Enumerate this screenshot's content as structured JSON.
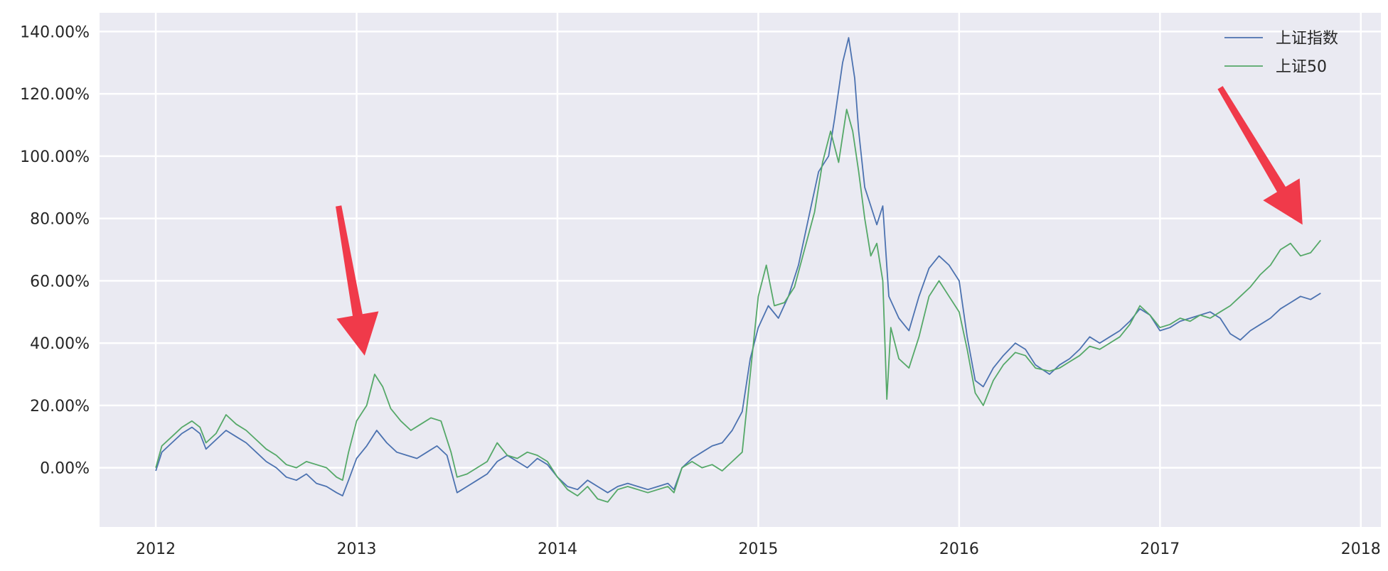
{
  "chart_data": {
    "type": "line",
    "title": "",
    "xlabel": "",
    "ylabel": "",
    "xlim": [
      2011.72,
      2018.1
    ],
    "ylim": [
      -19,
      146
    ],
    "x_ticks": [
      2012,
      2013,
      2014,
      2015,
      2016,
      2017,
      2018
    ],
    "x_tick_labels": [
      "2012",
      "2013",
      "2014",
      "2015",
      "2016",
      "2017",
      "2018"
    ],
    "y_ticks": [
      0,
      20,
      40,
      60,
      80,
      100,
      120,
      140
    ],
    "y_tick_labels": [
      "0.00%",
      "20.00%",
      "40.00%",
      "60.00%",
      "80.00%",
      "100.00%",
      "120.00%",
      "140.00%"
    ],
    "grid": true,
    "legend_position": "top-right",
    "series": [
      {
        "name": "上证指数",
        "color": "#4C72B0",
        "points": [
          [
            2012.0,
            -1
          ],
          [
            2012.03,
            5
          ],
          [
            2012.08,
            8
          ],
          [
            2012.13,
            11
          ],
          [
            2012.18,
            13
          ],
          [
            2012.22,
            11
          ],
          [
            2012.25,
            6
          ],
          [
            2012.3,
            9
          ],
          [
            2012.35,
            12
          ],
          [
            2012.4,
            10
          ],
          [
            2012.45,
            8
          ],
          [
            2012.5,
            5
          ],
          [
            2012.55,
            2
          ],
          [
            2012.6,
            0
          ],
          [
            2012.65,
            -3
          ],
          [
            2012.7,
            -4
          ],
          [
            2012.75,
            -2
          ],
          [
            2012.8,
            -5
          ],
          [
            2012.85,
            -6
          ],
          [
            2012.9,
            -8
          ],
          [
            2012.93,
            -9
          ],
          [
            2012.96,
            -4
          ],
          [
            2013.0,
            3
          ],
          [
            2013.05,
            7
          ],
          [
            2013.1,
            12
          ],
          [
            2013.15,
            8
          ],
          [
            2013.2,
            5
          ],
          [
            2013.25,
            4
          ],
          [
            2013.3,
            3
          ],
          [
            2013.35,
            5
          ],
          [
            2013.4,
            7
          ],
          [
            2013.45,
            4
          ],
          [
            2013.5,
            -8
          ],
          [
            2013.55,
            -6
          ],
          [
            2013.6,
            -4
          ],
          [
            2013.65,
            -2
          ],
          [
            2013.7,
            2
          ],
          [
            2013.75,
            4
          ],
          [
            2013.8,
            2
          ],
          [
            2013.85,
            0
          ],
          [
            2013.9,
            3
          ],
          [
            2013.95,
            1
          ],
          [
            2014.0,
            -3
          ],
          [
            2014.05,
            -6
          ],
          [
            2014.1,
            -7
          ],
          [
            2014.15,
            -4
          ],
          [
            2014.2,
            -6
          ],
          [
            2014.25,
            -8
          ],
          [
            2014.3,
            -6
          ],
          [
            2014.35,
            -5
          ],
          [
            2014.4,
            -6
          ],
          [
            2014.45,
            -7
          ],
          [
            2014.5,
            -6
          ],
          [
            2014.55,
            -5
          ],
          [
            2014.58,
            -7
          ],
          [
            2014.62,
            0
          ],
          [
            2014.67,
            3
          ],
          [
            2014.72,
            5
          ],
          [
            2014.77,
            7
          ],
          [
            2014.82,
            8
          ],
          [
            2014.87,
            12
          ],
          [
            2014.92,
            18
          ],
          [
            2014.96,
            35
          ],
          [
            2015.0,
            45
          ],
          [
            2015.05,
            52
          ],
          [
            2015.1,
            48
          ],
          [
            2015.15,
            55
          ],
          [
            2015.2,
            65
          ],
          [
            2015.25,
            80
          ],
          [
            2015.3,
            95
          ],
          [
            2015.35,
            100
          ],
          [
            2015.38,
            112
          ],
          [
            2015.42,
            130
          ],
          [
            2015.45,
            138
          ],
          [
            2015.48,
            125
          ],
          [
            2015.5,
            108
          ],
          [
            2015.53,
            90
          ],
          [
            2015.56,
            84
          ],
          [
            2015.59,
            78
          ],
          [
            2015.62,
            84
          ],
          [
            2015.65,
            55
          ],
          [
            2015.7,
            48
          ],
          [
            2015.75,
            44
          ],
          [
            2015.8,
            55
          ],
          [
            2015.85,
            64
          ],
          [
            2015.9,
            68
          ],
          [
            2015.95,
            65
          ],
          [
            2016.0,
            60
          ],
          [
            2016.04,
            42
          ],
          [
            2016.08,
            28
          ],
          [
            2016.12,
            26
          ],
          [
            2016.17,
            32
          ],
          [
            2016.22,
            36
          ],
          [
            2016.28,
            40
          ],
          [
            2016.33,
            38
          ],
          [
            2016.38,
            33
          ],
          [
            2016.45,
            30
          ],
          [
            2016.5,
            33
          ],
          [
            2016.55,
            35
          ],
          [
            2016.6,
            38
          ],
          [
            2016.65,
            42
          ],
          [
            2016.7,
            40
          ],
          [
            2016.75,
            42
          ],
          [
            2016.8,
            44
          ],
          [
            2016.85,
            47
          ],
          [
            2016.9,
            51
          ],
          [
            2016.95,
            49
          ],
          [
            2017.0,
            44
          ],
          [
            2017.05,
            45
          ],
          [
            2017.1,
            47
          ],
          [
            2017.15,
            48
          ],
          [
            2017.2,
            49
          ],
          [
            2017.25,
            50
          ],
          [
            2017.3,
            48
          ],
          [
            2017.35,
            43
          ],
          [
            2017.4,
            41
          ],
          [
            2017.45,
            44
          ],
          [
            2017.5,
            46
          ],
          [
            2017.55,
            48
          ],
          [
            2017.6,
            51
          ],
          [
            2017.65,
            53
          ],
          [
            2017.7,
            55
          ],
          [
            2017.75,
            54
          ],
          [
            2017.8,
            56
          ]
        ]
      },
      {
        "name": "上证50",
        "color": "#55A868",
        "points": [
          [
            2012.0,
            0
          ],
          [
            2012.03,
            7
          ],
          [
            2012.08,
            10
          ],
          [
            2012.13,
            13
          ],
          [
            2012.18,
            15
          ],
          [
            2012.22,
            13
          ],
          [
            2012.25,
            8
          ],
          [
            2012.3,
            11
          ],
          [
            2012.35,
            17
          ],
          [
            2012.4,
            14
          ],
          [
            2012.45,
            12
          ],
          [
            2012.5,
            9
          ],
          [
            2012.55,
            6
          ],
          [
            2012.6,
            4
          ],
          [
            2012.65,
            1
          ],
          [
            2012.7,
            0
          ],
          [
            2012.75,
            2
          ],
          [
            2012.8,
            1
          ],
          [
            2012.85,
            0
          ],
          [
            2012.9,
            -3
          ],
          [
            2012.93,
            -4
          ],
          [
            2012.96,
            5
          ],
          [
            2013.0,
            15
          ],
          [
            2013.05,
            20
          ],
          [
            2013.09,
            30
          ],
          [
            2013.13,
            26
          ],
          [
            2013.17,
            19
          ],
          [
            2013.22,
            15
          ],
          [
            2013.27,
            12
          ],
          [
            2013.32,
            14
          ],
          [
            2013.37,
            16
          ],
          [
            2013.42,
            15
          ],
          [
            2013.47,
            5
          ],
          [
            2013.5,
            -3
          ],
          [
            2013.55,
            -2
          ],
          [
            2013.6,
            0
          ],
          [
            2013.65,
            2
          ],
          [
            2013.7,
            8
          ],
          [
            2013.75,
            4
          ],
          [
            2013.8,
            3
          ],
          [
            2013.85,
            5
          ],
          [
            2013.9,
            4
          ],
          [
            2013.95,
            2
          ],
          [
            2014.0,
            -3
          ],
          [
            2014.05,
            -7
          ],
          [
            2014.1,
            -9
          ],
          [
            2014.15,
            -6
          ],
          [
            2014.2,
            -10
          ],
          [
            2014.25,
            -11
          ],
          [
            2014.3,
            -7
          ],
          [
            2014.35,
            -6
          ],
          [
            2014.4,
            -7
          ],
          [
            2014.45,
            -8
          ],
          [
            2014.5,
            -7
          ],
          [
            2014.55,
            -6
          ],
          [
            2014.58,
            -8
          ],
          [
            2014.62,
            0
          ],
          [
            2014.67,
            2
          ],
          [
            2014.72,
            0
          ],
          [
            2014.77,
            1
          ],
          [
            2014.82,
            -1
          ],
          [
            2014.87,
            2
          ],
          [
            2014.92,
            5
          ],
          [
            2014.96,
            30
          ],
          [
            2015.0,
            55
          ],
          [
            2015.04,
            65
          ],
          [
            2015.08,
            52
          ],
          [
            2015.13,
            53
          ],
          [
            2015.18,
            58
          ],
          [
            2015.23,
            70
          ],
          [
            2015.28,
            82
          ],
          [
            2015.32,
            98
          ],
          [
            2015.36,
            108
          ],
          [
            2015.4,
            98
          ],
          [
            2015.44,
            115
          ],
          [
            2015.47,
            108
          ],
          [
            2015.5,
            95
          ],
          [
            2015.53,
            80
          ],
          [
            2015.56,
            68
          ],
          [
            2015.59,
            72
          ],
          [
            2015.62,
            60
          ],
          [
            2015.64,
            22
          ],
          [
            2015.66,
            45
          ],
          [
            2015.7,
            35
          ],
          [
            2015.75,
            32
          ],
          [
            2015.8,
            42
          ],
          [
            2015.85,
            55
          ],
          [
            2015.9,
            60
          ],
          [
            2015.95,
            55
          ],
          [
            2016.0,
            50
          ],
          [
            2016.04,
            38
          ],
          [
            2016.08,
            24
          ],
          [
            2016.12,
            20
          ],
          [
            2016.17,
            28
          ],
          [
            2016.22,
            33
          ],
          [
            2016.28,
            37
          ],
          [
            2016.33,
            36
          ],
          [
            2016.38,
            32
          ],
          [
            2016.45,
            31
          ],
          [
            2016.5,
            32
          ],
          [
            2016.55,
            34
          ],
          [
            2016.6,
            36
          ],
          [
            2016.65,
            39
          ],
          [
            2016.7,
            38
          ],
          [
            2016.75,
            40
          ],
          [
            2016.8,
            42
          ],
          [
            2016.85,
            46
          ],
          [
            2016.9,
            52
          ],
          [
            2016.95,
            49
          ],
          [
            2017.0,
            45
          ],
          [
            2017.05,
            46
          ],
          [
            2017.1,
            48
          ],
          [
            2017.15,
            47
          ],
          [
            2017.2,
            49
          ],
          [
            2017.25,
            48
          ],
          [
            2017.3,
            50
          ],
          [
            2017.35,
            52
          ],
          [
            2017.4,
            55
          ],
          [
            2017.45,
            58
          ],
          [
            2017.5,
            62
          ],
          [
            2017.55,
            65
          ],
          [
            2017.6,
            70
          ],
          [
            2017.65,
            72
          ],
          [
            2017.7,
            68
          ],
          [
            2017.75,
            69
          ],
          [
            2017.8,
            73
          ]
        ]
      }
    ],
    "annotations": [
      {
        "type": "arrow",
        "color": "#F03A4A",
        "from": [
          2012.91,
          84
        ],
        "to": [
          2013.04,
          36
        ]
      },
      {
        "type": "arrow",
        "color": "#F03A4A",
        "from": [
          2017.3,
          122
        ],
        "to": [
          2017.71,
          78
        ]
      }
    ]
  }
}
